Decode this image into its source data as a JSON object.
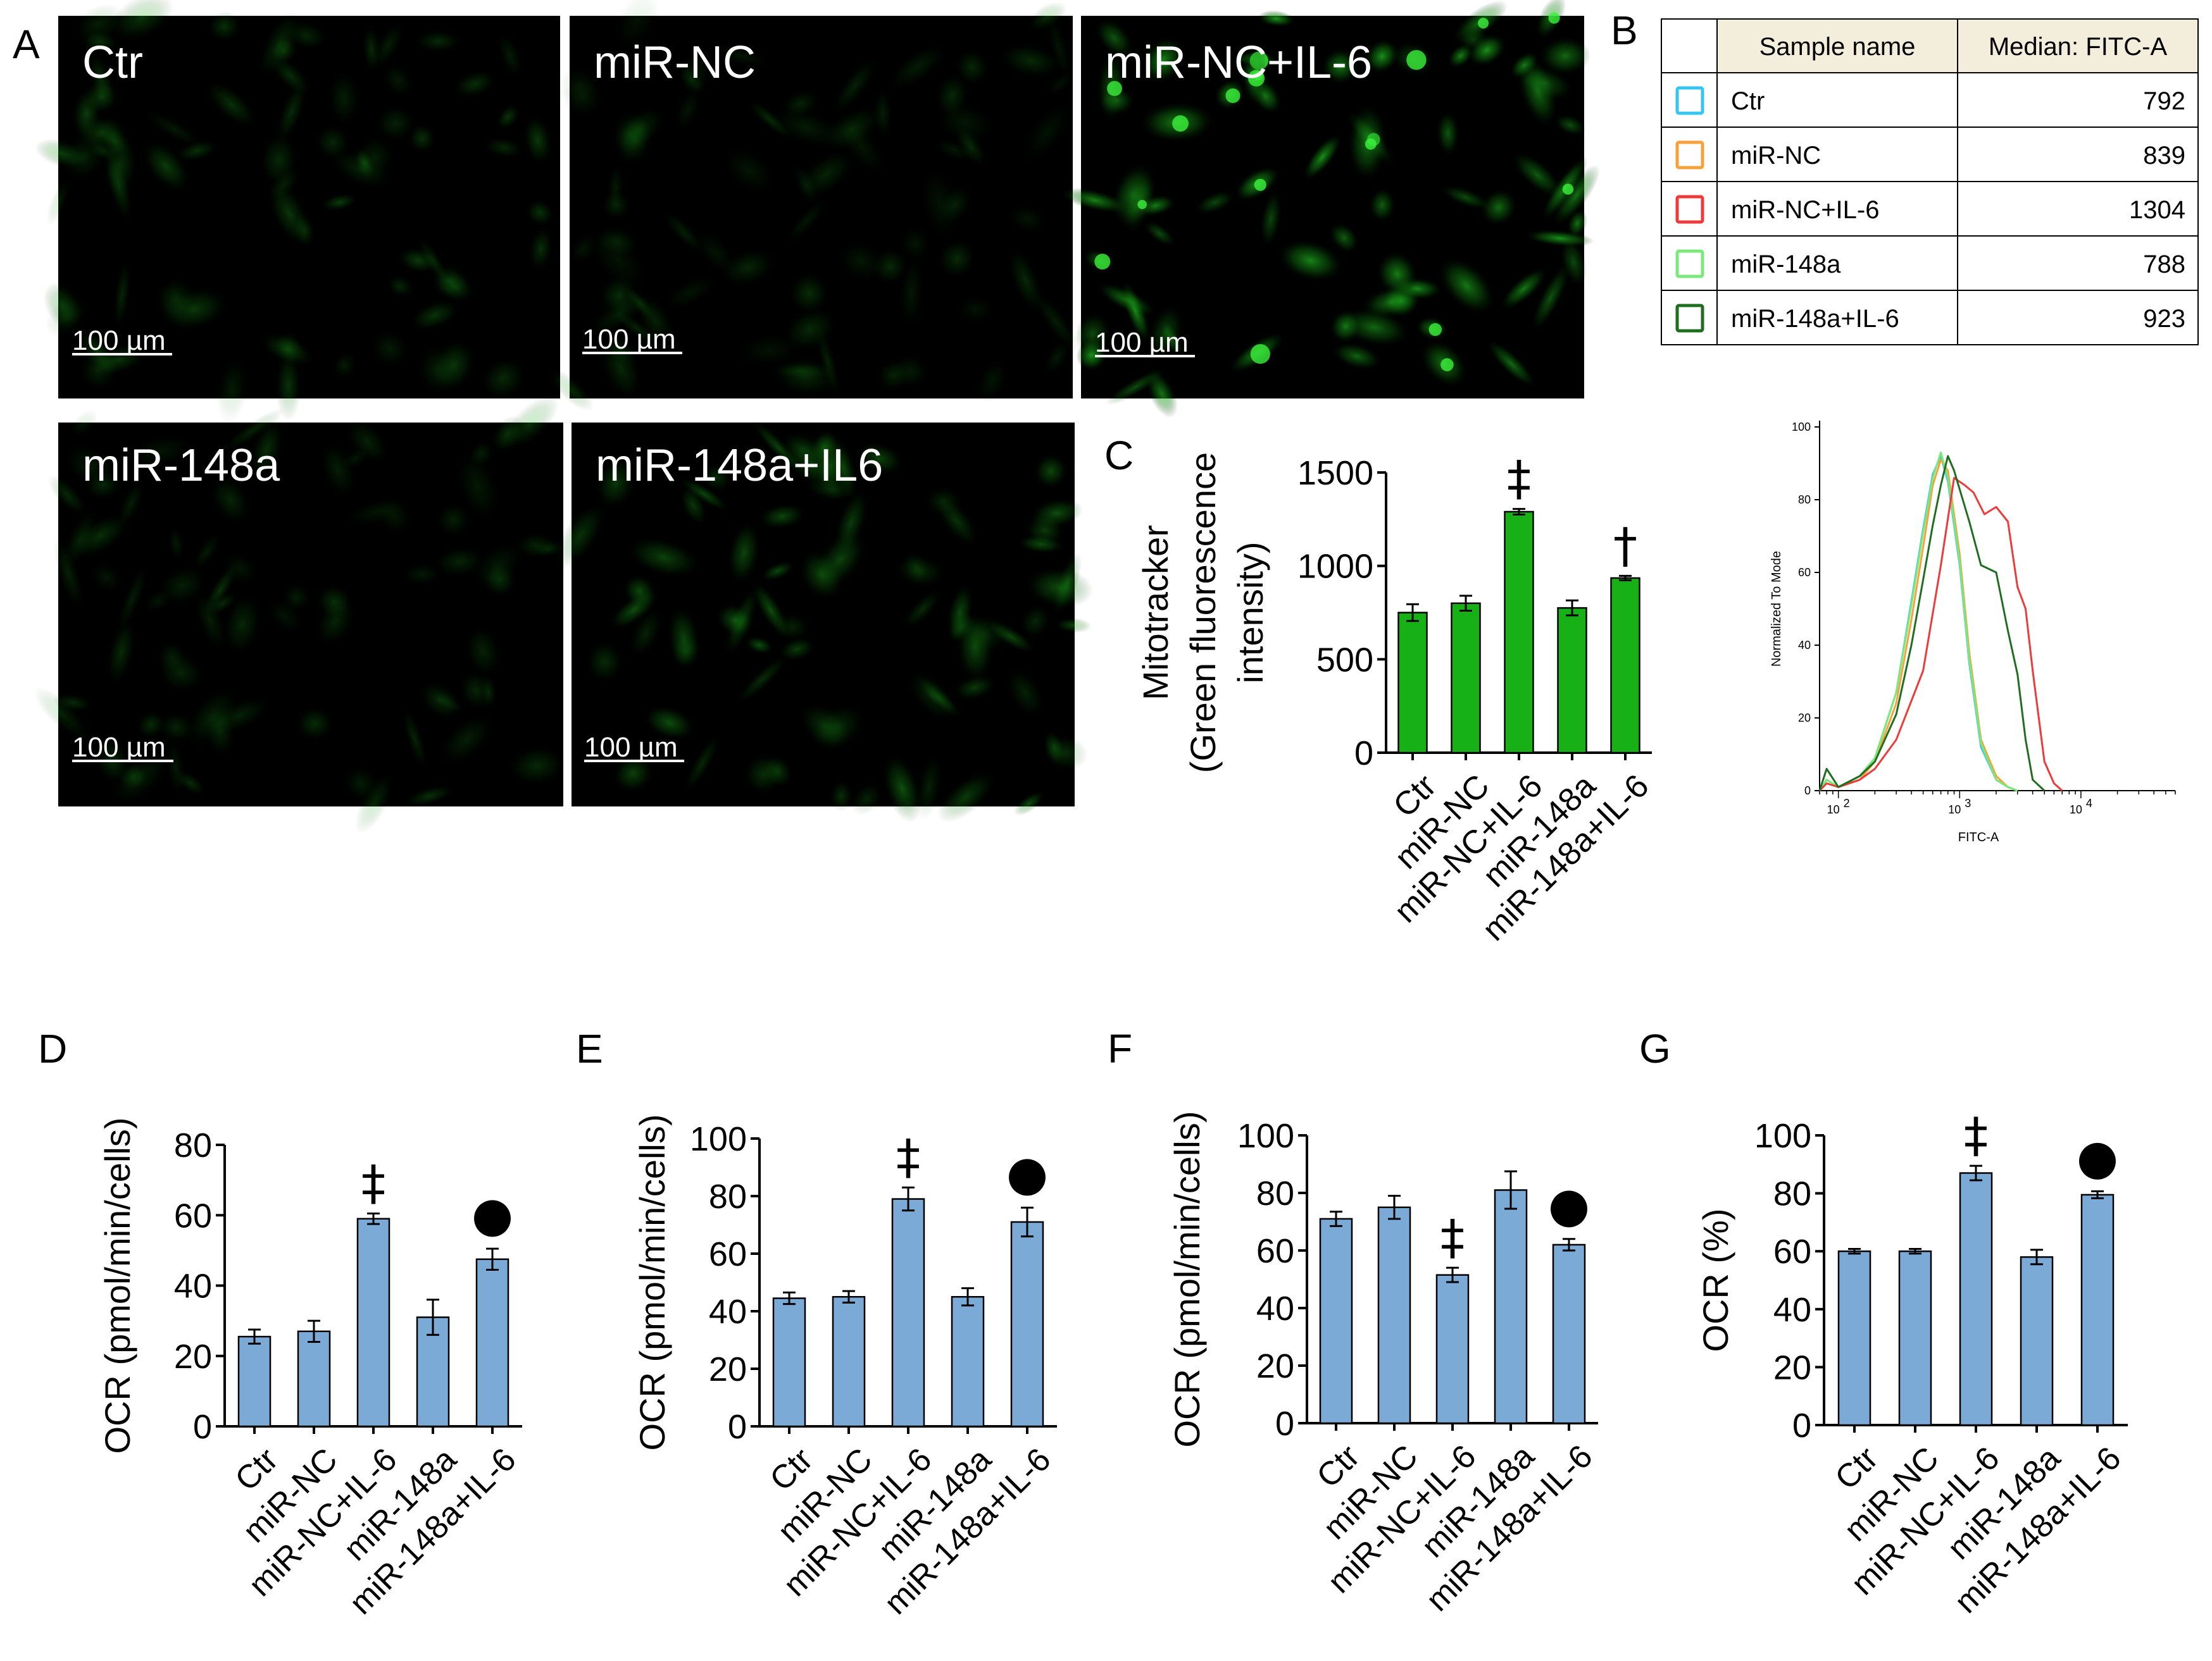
{
  "panel_letters": {
    "A": "A",
    "B": "B",
    "C": "C",
    "D": "D",
    "E": "E",
    "F": "F",
    "G": "G"
  },
  "micrographs": [
    {
      "label": "Ctr",
      "scale": "100 µm",
      "brightness": 0.35
    },
    {
      "label": "miR-NC",
      "scale": "100 µm",
      "brightness": 0.25
    },
    {
      "label": "miR-NC+IL-6",
      "scale": "100 µm",
      "brightness": 0.85
    },
    {
      "label": "miR-148a",
      "scale": "100 µm",
      "brightness": 0.28
    },
    {
      "label": "miR-148a+IL6",
      "scale": "100 µm",
      "brightness": 0.45
    }
  ],
  "table": {
    "headers": [
      "Sample name",
      "Median: FITC-A"
    ],
    "header_bg": "#f3eddc",
    "rows": [
      {
        "name": "Ctr",
        "value": "792",
        "color": "#33c6f0"
      },
      {
        "name": "miR-NC",
        "value": "839",
        "color": "#f7a13a"
      },
      {
        "name": "miR-NC+IL-6",
        "value": "1304",
        "color": "#ee3a3a"
      },
      {
        "name": "miR-148a",
        "value": "788",
        "color": "#7be87b"
      },
      {
        "name": "miR-148a+IL-6",
        "value": "923",
        "color": "#1f6e1f"
      }
    ]
  },
  "chart_data": [
    {
      "id": "C",
      "type": "bar",
      "color": "#17b017",
      "categories": [
        "Ctr",
        "miR-NC",
        "miR-NC+IL-6",
        "miR-148a",
        "miR-148a+IL-6"
      ],
      "values": [
        750,
        800,
        1290,
        775,
        935
      ],
      "errors": [
        45,
        40,
        15,
        40,
        12
      ],
      "ylim": [
        0,
        1500
      ],
      "yticks": [
        "0",
        "500",
        "1000",
        "1500"
      ],
      "ylabel": [
        "Mitotracker",
        "(Green fluorescence",
        "intensity)"
      ],
      "annotations": [
        "",
        "",
        "‡",
        "",
        "†"
      ]
    },
    {
      "id": "D",
      "type": "bar",
      "color": "#7baad6",
      "categories": [
        "Ctr",
        "miR-NC",
        "miR-NC+IL-6",
        "miR-148a",
        "miR-148a+IL-6"
      ],
      "values": [
        25.5,
        27,
        59,
        31,
        47.5
      ],
      "errors": [
        2,
        3,
        1.5,
        5,
        3
      ],
      "ylim": [
        0,
        80
      ],
      "yticks": [
        "0",
        "20",
        "40",
        "60",
        "80"
      ],
      "ylabel": [
        "OCR (pmol/min/cells)"
      ],
      "annotations": [
        "",
        "",
        "‡",
        "",
        "●"
      ]
    },
    {
      "id": "E",
      "type": "bar",
      "color": "#7baad6",
      "categories": [
        "Ctr",
        "miR-NC",
        "miR-NC+IL-6",
        "miR-148a",
        "miR-148a+IL-6"
      ],
      "values": [
        44.5,
        45,
        79,
        45,
        71
      ],
      "errors": [
        2,
        2,
        4,
        3,
        5
      ],
      "ylim": [
        0,
        100
      ],
      "yticks": [
        "0",
        "20",
        "40",
        "60",
        "80",
        "100"
      ],
      "ylabel": [
        "OCR (pmol/min/cells)"
      ],
      "annotations": [
        "",
        "",
        "‡",
        "",
        "●"
      ]
    },
    {
      "id": "F",
      "type": "bar",
      "color": "#7baad6",
      "categories": [
        "Ctr",
        "miR-NC",
        "miR-NC+IL-6",
        "miR-148a",
        "miR-148a+IL-6"
      ],
      "values": [
        71,
        75,
        51.5,
        81,
        62
      ],
      "errors": [
        2.5,
        4,
        2.5,
        6.5,
        2
      ],
      "ylim": [
        0,
        100
      ],
      "yticks": [
        "0",
        "20",
        "40",
        "60",
        "80",
        "100"
      ],
      "ylabel": [
        "OCR (pmol/min/cells)"
      ],
      "annotations": [
        "",
        "",
        "‡",
        "",
        "●"
      ]
    },
    {
      "id": "G",
      "type": "bar",
      "color": "#7baad6",
      "categories": [
        "Ctr",
        "miR-NC",
        "miR-NC+IL-6",
        "miR-148a",
        "miR-148a+IL-6"
      ],
      "values": [
        60,
        60,
        87,
        58,
        79.5
      ],
      "errors": [
        0.8,
        0.8,
        2.5,
        2.5,
        1.2
      ],
      "ylim": [
        0,
        100
      ],
      "yticks": [
        "0",
        "20",
        "40",
        "60",
        "80",
        "100"
      ],
      "ylabel": [
        "OCR (%)"
      ],
      "annotations": [
        "",
        "",
        "‡",
        "",
        "●"
      ]
    },
    {
      "id": "histogram",
      "type": "line",
      "xlabel": "FITC-A",
      "ylabel": "Normalized To Mode",
      "xscale": "log",
      "xlim": [
        70,
        60000
      ],
      "ylim": [
        0,
        100
      ],
      "xticks": [
        {
          "value": 100,
          "label": "10"
        },
        {
          "value": 1000,
          "label": "10"
        },
        {
          "value": 10000,
          "label": "10"
        }
      ],
      "xtick_exponents": [
        "2",
        "3",
        "4"
      ],
      "yticks": [
        "0",
        "20",
        "40",
        "60",
        "80",
        "100"
      ],
      "series": [
        {
          "color": "#33c6f0",
          "x": [
            70,
            80,
            100,
            150,
            200,
            300,
            400,
            500,
            600,
            700,
            800,
            1000,
            1200,
            1500,
            2000,
            2500,
            3000
          ],
          "y": [
            0,
            3,
            1,
            4,
            9,
            27,
            52,
            72,
            87,
            92,
            85,
            62,
            35,
            12,
            3,
            1,
            0
          ]
        },
        {
          "color": "#f7a13a",
          "x": [
            70,
            80,
            100,
            150,
            200,
            300,
            400,
            500,
            600,
            700,
            800,
            1000,
            1200,
            1500,
            2000,
            2500,
            3000
          ],
          "y": [
            0,
            3,
            1,
            3,
            8,
            24,
            47,
            67,
            84,
            91,
            88,
            65,
            38,
            14,
            4,
            1,
            0
          ]
        },
        {
          "color": "#7be87b",
          "x": [
            70,
            80,
            100,
            150,
            200,
            300,
            400,
            500,
            600,
            700,
            800,
            1000,
            1200,
            1500,
            2000,
            2500,
            3000
          ],
          "y": [
            0,
            3,
            1,
            4,
            9,
            27,
            51,
            71,
            86,
            93,
            86,
            63,
            36,
            13,
            3,
            1,
            0
          ]
        },
        {
          "color": "#ee3a3a",
          "x": [
            70,
            80,
            100,
            150,
            200,
            300,
            500,
            700,
            900,
            1100,
            1300,
            1600,
            2000,
            2500,
            3000,
            3500,
            4000,
            5000,
            6000,
            7000
          ],
          "y": [
            0,
            2,
            1,
            3,
            6,
            14,
            33,
            62,
            86,
            84,
            82,
            76,
            78,
            74,
            56,
            50,
            33,
            8,
            2,
            0
          ]
        },
        {
          "color": "#1f6e1f",
          "x": [
            70,
            80,
            100,
            150,
            200,
            300,
            400,
            500,
            600,
            700,
            800,
            900,
            1200,
            1500,
            2000,
            2500,
            3000,
            3500,
            4000,
            5000
          ],
          "y": [
            0,
            6,
            1,
            4,
            8,
            21,
            40,
            58,
            73,
            84,
            92,
            88,
            74,
            62,
            60,
            44,
            32,
            14,
            3,
            0
          ]
        }
      ]
    }
  ]
}
